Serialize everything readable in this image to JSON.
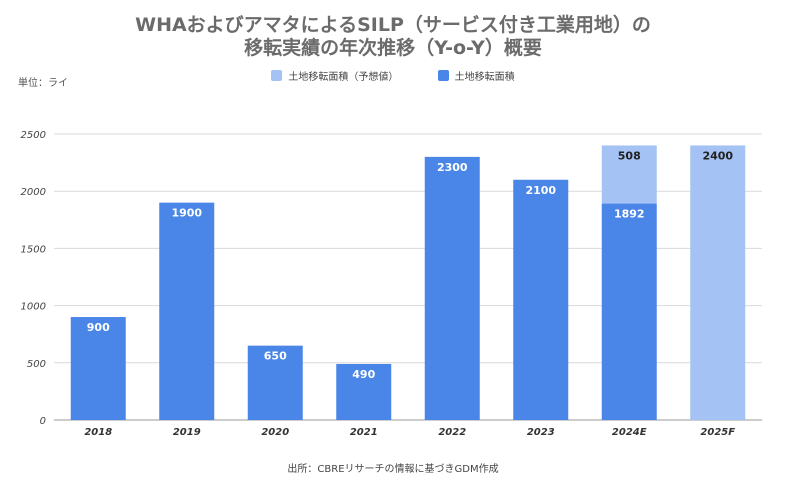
{
  "chart_data": {
    "type": "bar",
    "title": "WHAおよびアマタによるSILP（サービス付き工業用地）の移転実績の年次推移（Y-o-Y）概要",
    "title_lines": [
      "WHAおよびアマタによるSILP（サービス付き工業用地）の",
      "移転実績の年次推移（Y-o-Y）概要"
    ],
    "unit_label": "単位：ライ",
    "categories": [
      "2018",
      "2019",
      "2020",
      "2021",
      "2022",
      "2023",
      "2024E",
      "2025F"
    ],
    "series": [
      {
        "name": "土地移転面積",
        "color": "#4a86e8",
        "values": [
          900,
          1900,
          650,
          490,
          2300,
          2100,
          1892,
          0
        ]
      },
      {
        "name": "土地移転面積（予想値）",
        "color": "#a4c2f4",
        "values": [
          0,
          0,
          0,
          0,
          0,
          0,
          508,
          2400
        ]
      }
    ],
    "stacked": true,
    "ylim": [
      0,
      2500
    ],
    "yticks": [
      0,
      500,
      1000,
      1500,
      2000,
      2500
    ],
    "grid": true,
    "legend_position": "top",
    "legend_order": [
      1,
      0
    ],
    "data_label_colors": {
      "dark": "#ffffff",
      "light": "#222222"
    },
    "source": "出所：CBREリサーチの情報に基づきGDM作成"
  }
}
